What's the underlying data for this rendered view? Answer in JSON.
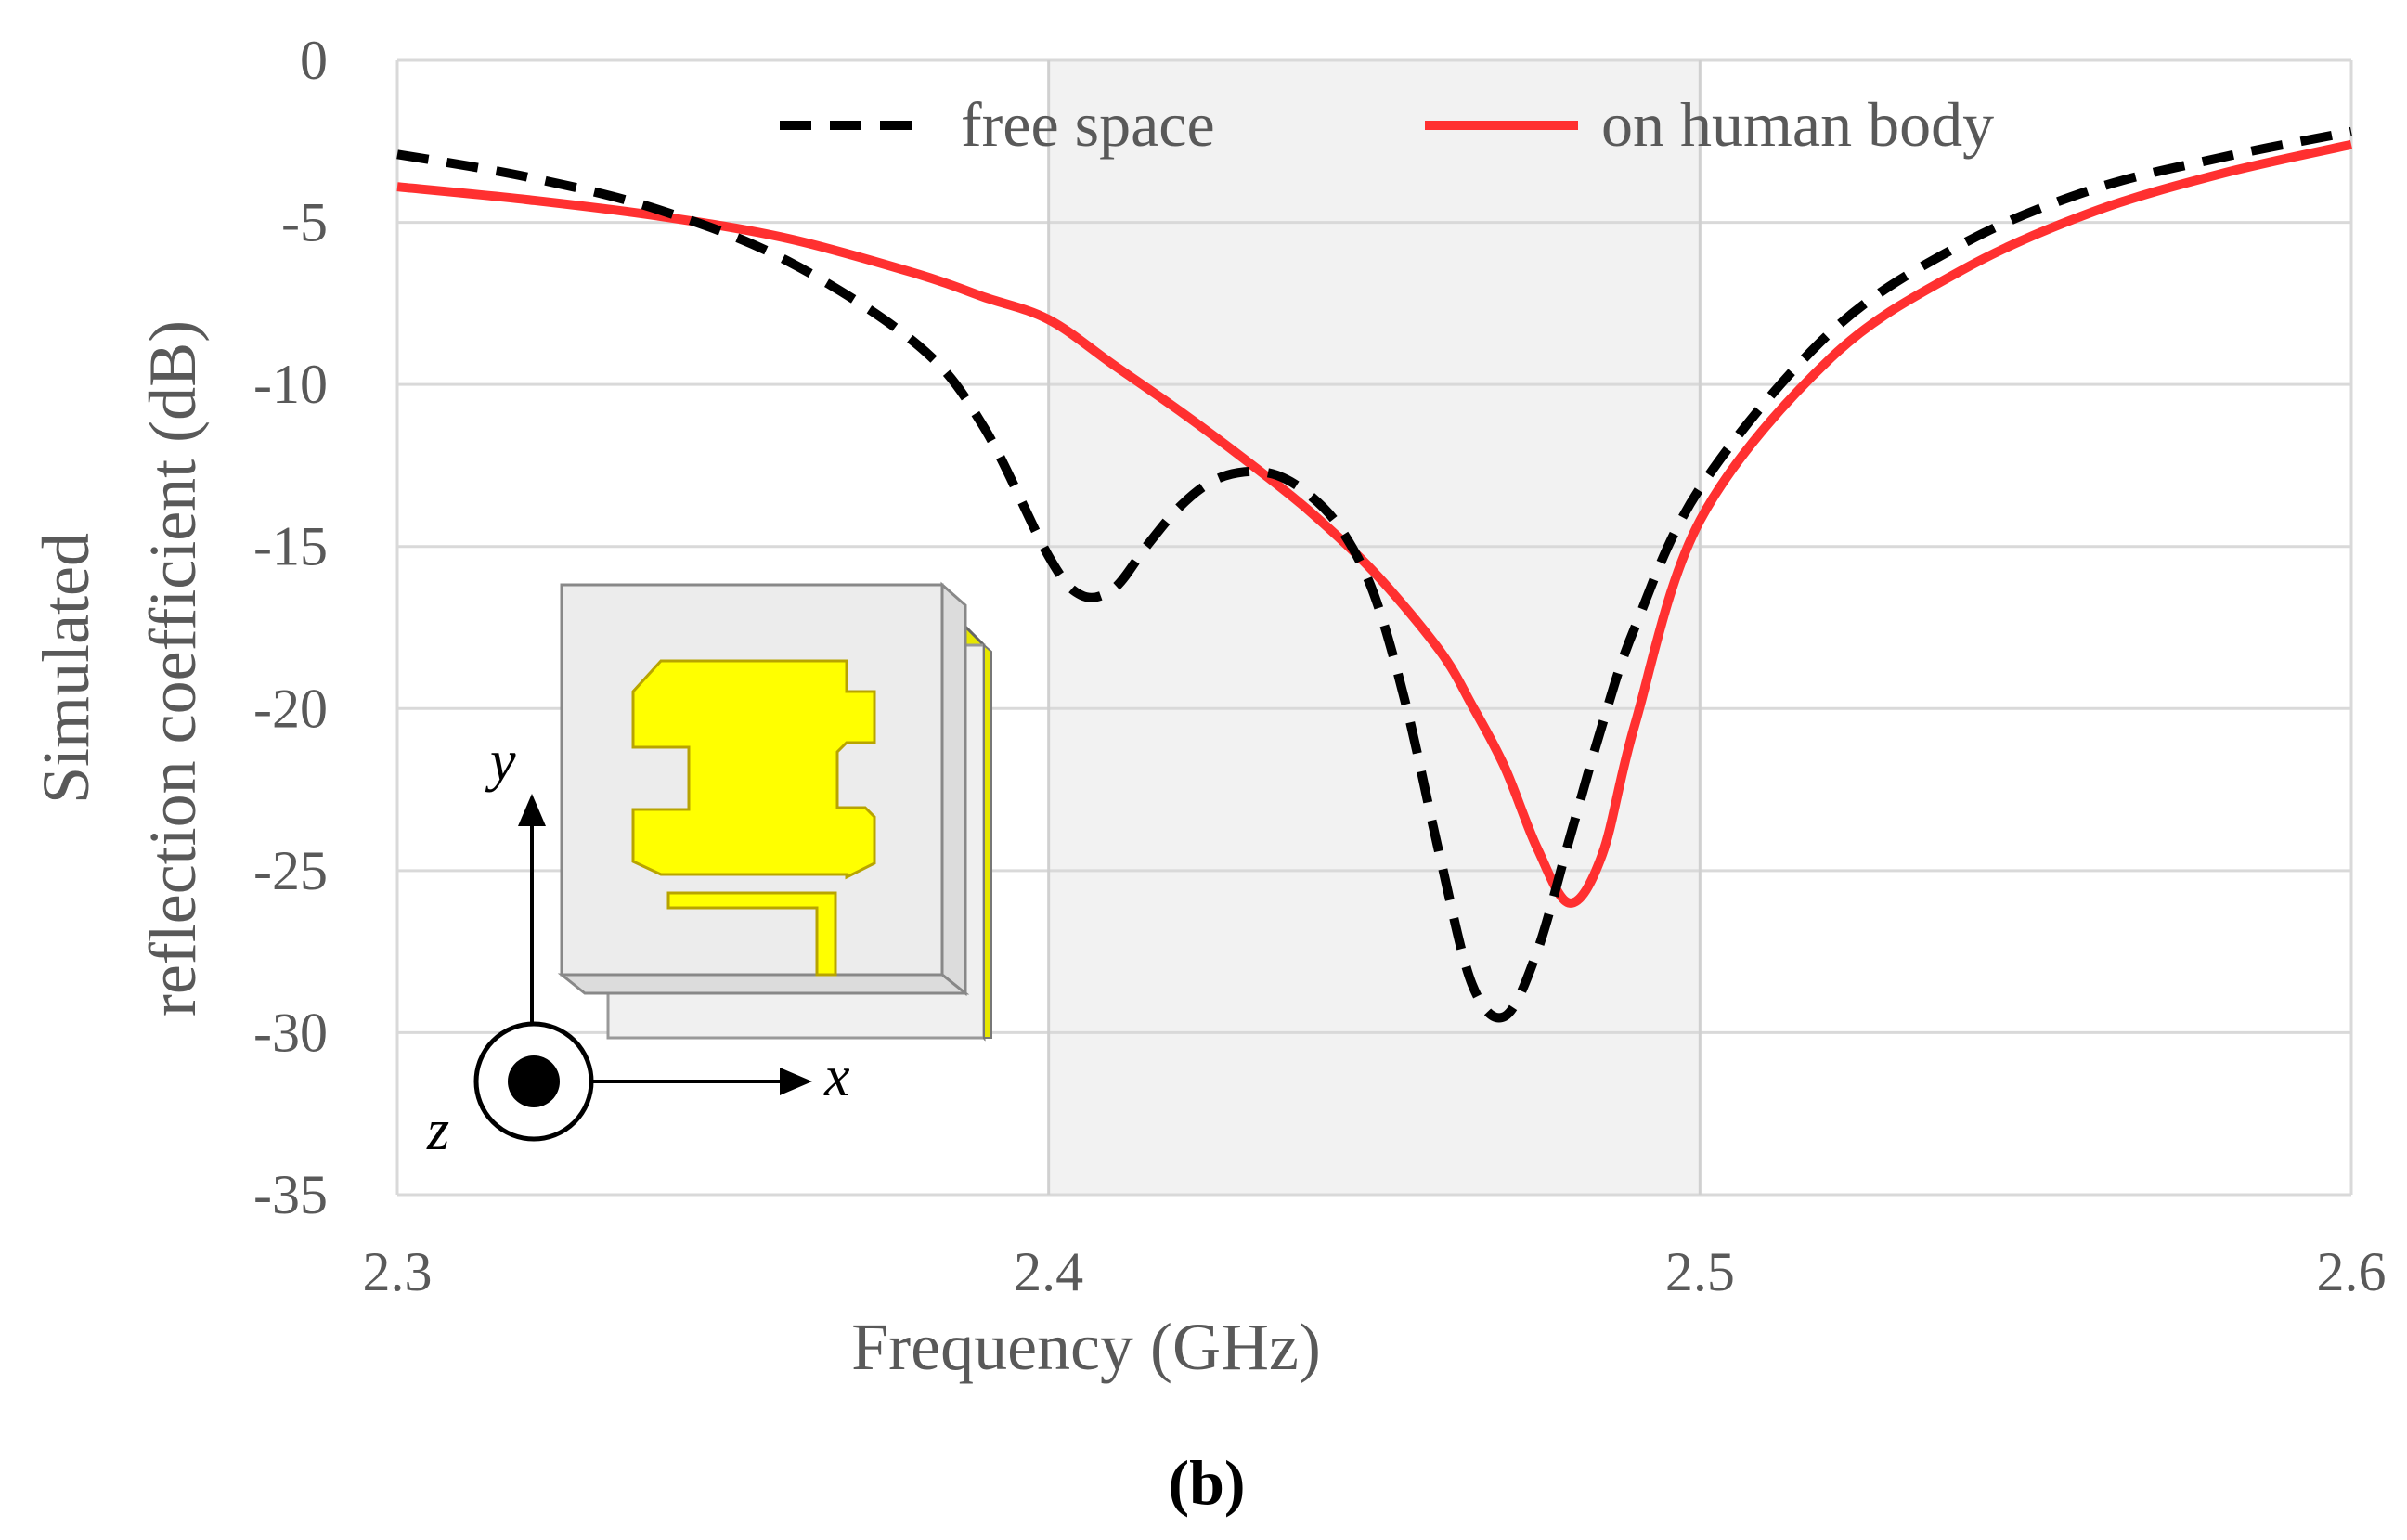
{
  "chart_data": {
    "type": "line",
    "xlabel": "Frequency (GHz)",
    "ylabel_lines": [
      "Simulated",
      "reflection coefficient (dB)"
    ],
    "xlim": [
      2.3,
      2.6
    ],
    "ylim": [
      -35,
      0
    ],
    "x_ticks": [
      "2.3",
      "2.4",
      "2.5",
      "2.6"
    ],
    "y_ticks": [
      "0",
      "-5",
      "-10",
      "-15",
      "-20",
      "-25",
      "-30",
      "-35"
    ],
    "grid": "horizontal",
    "legend_position": "top",
    "highlight_band": {
      "from": 2.4,
      "to": 2.5,
      "color": "#f2f2f2"
    },
    "series": [
      {
        "name": "free space",
        "color": "#000000",
        "style": "dashed",
        "x": [
          2.3,
          2.32,
          2.34,
          2.36,
          2.38,
          2.39,
          2.4,
          2.405,
          2.41,
          2.415,
          2.42,
          2.425,
          2.43,
          2.435,
          2.44,
          2.445,
          2.45,
          2.455,
          2.46,
          2.465,
          2.47,
          2.475,
          2.48,
          2.485,
          2.49,
          2.5,
          2.52,
          2.54,
          2.56,
          2.58,
          2.6
        ],
        "y": [
          -2.9,
          -3.6,
          -4.6,
          -6.2,
          -8.8,
          -11.3,
          -15.3,
          -16.5,
          -16.3,
          -15.0,
          -13.8,
          -13.0,
          -12.7,
          -12.8,
          -13.4,
          -14.5,
          -16.5,
          -20.0,
          -24.5,
          -28.5,
          -29.5,
          -27.5,
          -24.0,
          -20.5,
          -17.5,
          -13.2,
          -8.4,
          -5.7,
          -4.0,
          -3.0,
          -2.2
        ]
      },
      {
        "name": "on human body",
        "color": "#ff0000",
        "style": "solid",
        "x": [
          2.3,
          2.32,
          2.34,
          2.36,
          2.38,
          2.39,
          2.4,
          2.41,
          2.42,
          2.43,
          2.44,
          2.45,
          2.46,
          2.465,
          2.47,
          2.475,
          2.48,
          2.485,
          2.49,
          2.5,
          2.52,
          2.54,
          2.56,
          2.58,
          2.6
        ],
        "y": [
          -3.9,
          -4.3,
          -4.8,
          -5.5,
          -6.6,
          -7.3,
          -8.0,
          -9.4,
          -10.8,
          -12.3,
          -13.9,
          -15.8,
          -18.2,
          -19.9,
          -21.8,
          -24.3,
          -26.0,
          -24.5,
          -20.5,
          -14.2,
          -9.2,
          -6.5,
          -4.7,
          -3.5,
          -2.6
        ]
      }
    ]
  },
  "inset": {
    "axis_x": "x",
    "axis_y": "y",
    "axis_z": "z",
    "patch_color": "#ffff00",
    "substrate_color": "#ececec"
  },
  "caption": "(b)"
}
